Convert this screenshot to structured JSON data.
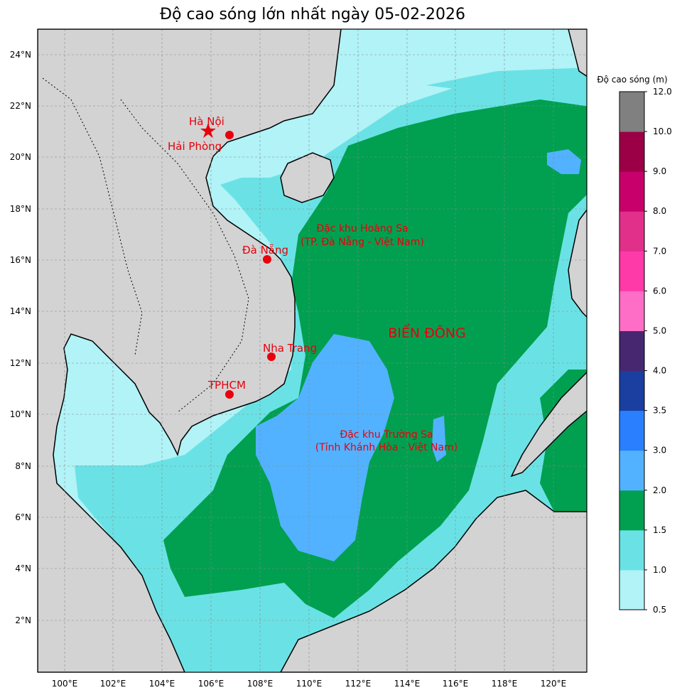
{
  "title": "Độ cao sóng lớn nhất ngày 05-02-2026",
  "colorbar": {
    "label": "Độ cao sóng (m)",
    "ticks": [
      "0.5",
      "1.0",
      "1.5",
      "2.0",
      "2.5",
      "3.0",
      "3.5",
      "4.0",
      "5.0",
      "6.0",
      "7.0",
      "8.0",
      "9.0",
      "10.0",
      "12.0"
    ],
    "colors": [
      "#b1f3f7",
      "#6ae2e5",
      "#00a050",
      "#52b2ff",
      "#2a7fff",
      "#1a3fa0",
      "#462770",
      "#fe6ec7",
      "#fe3aa8",
      "#e0308a",
      "#c7006b",
      "#9b0046",
      "#808080"
    ]
  },
  "axes": {
    "lat_labels": [
      "24°N",
      "22°N",
      "20°N",
      "18°N",
      "16°N",
      "14°N",
      "12°N",
      "10°N",
      "8°N",
      "6°N",
      "4°N",
      "2°N"
    ],
    "lon_labels": [
      "100°E",
      "102°E",
      "104°E",
      "106°E",
      "108°E",
      "110°E",
      "112°E",
      "114°E",
      "116°E",
      "118°E",
      "120°E"
    ]
  },
  "cities": [
    {
      "name": "Hà Nội",
      "symbol": "star"
    },
    {
      "name": "Hải Phòng",
      "symbol": "dot"
    },
    {
      "name": "Đà Nẵng",
      "symbol": "dot"
    },
    {
      "name": "Nha Trang",
      "symbol": "dot"
    },
    {
      "name": "TPHCM",
      "symbol": "dot"
    }
  ],
  "regions": {
    "hoang_sa_1": "Đặc khu Hoàng Sa",
    "hoang_sa_2": "(TP. Đà Nẵng - Việt Nam)",
    "truong_sa_1": "Đặc khu Trường Sa",
    "truong_sa_2": "(Tỉnh Khánh Hòa - Việt Nam)",
    "sea": "BIỂN ĐÔNG"
  }
}
